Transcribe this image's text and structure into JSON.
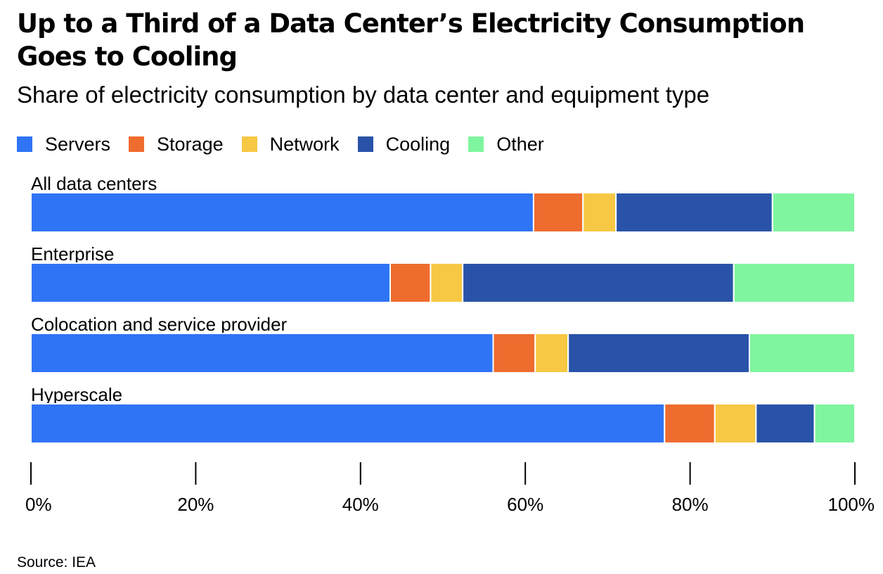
{
  "header": {
    "title": "Up to a Third of a Data Center’s Electricity Consumption Goes to Cooling",
    "subtitle": "Share of electricity consumption by data center and equipment type"
  },
  "legend": [
    {
      "label": "Servers",
      "color": "#2f74f5"
    },
    {
      "label": "Storage",
      "color": "#ef6c2f"
    },
    {
      "label": "Network",
      "color": "#f7c844"
    },
    {
      "label": "Cooling",
      "color": "#2953a8"
    },
    {
      "label": "Other",
      "color": "#80f5a0"
    }
  ],
  "chart_data": {
    "type": "bar",
    "orientation": "horizontal",
    "stacked": true,
    "title": "Up to a Third of a Data Center’s Electricity Consumption Goes to Cooling",
    "subtitle": "Share of electricity consumption by data center and equipment type",
    "categories": [
      "All data centers",
      "Enterprise",
      "Colocation and service provider",
      "Hyperscale"
    ],
    "series": [
      {
        "name": "Servers",
        "color": "#2f74f5",
        "values": [
          61,
          43.6,
          56.1,
          76.9
        ]
      },
      {
        "name": "Storage",
        "color": "#ef6c2f",
        "values": [
          6,
          4.9,
          5.1,
          6.1
        ]
      },
      {
        "name": "Network",
        "color": "#f7c844",
        "values": [
          4,
          3.9,
          4.0,
          5.0
        ]
      },
      {
        "name": "Cooling",
        "color": "#2953a8",
        "values": [
          19,
          32.9,
          22.0,
          7.1
        ]
      },
      {
        "name": "Other",
        "color": "#80f5a0",
        "values": [
          10,
          14.7,
          12.8,
          4.9
        ]
      }
    ],
    "xlim": [
      0,
      100
    ],
    "xticks": [
      0,
      20,
      40,
      60,
      80,
      100
    ],
    "xtick_labels": [
      "0%",
      "20%",
      "40%",
      "60%",
      "80%",
      "100%"
    ],
    "xlabel": "",
    "ylabel": "",
    "grid": false,
    "legend_position": "top-left"
  },
  "source": "Source: IEA"
}
